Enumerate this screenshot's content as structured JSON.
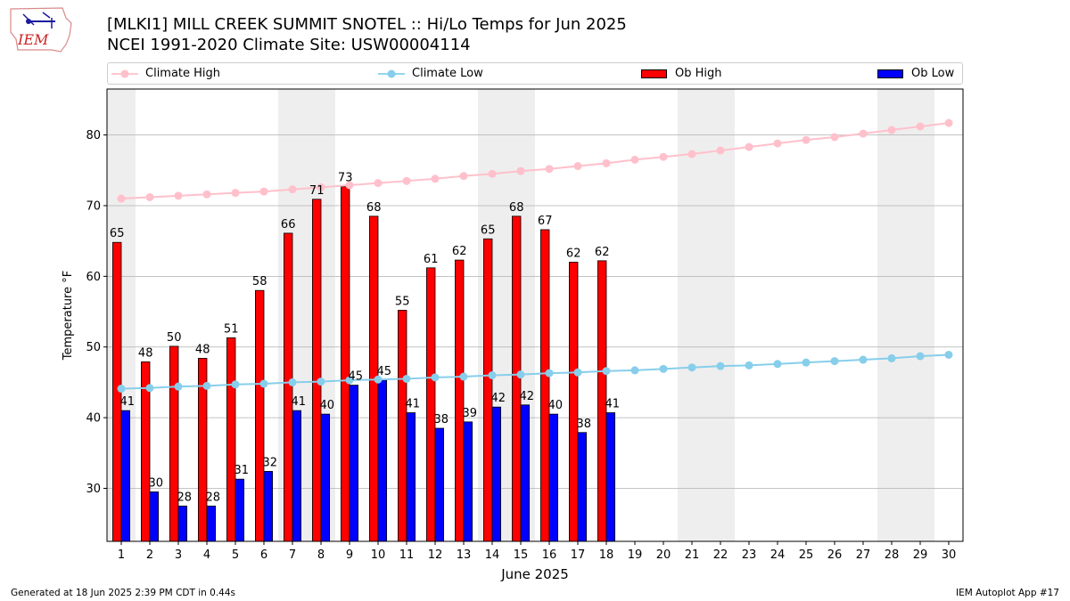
{
  "header": {
    "title_line1": "[MLKI1] MILL CREEK SUMMIT SNOTEL :: Hi/Lo Temps for Jun 2025",
    "title_line2": "NCEI 1991-2020 Climate Site: USW00004114",
    "logo_text": "IEM"
  },
  "legend": {
    "climate_high": "Climate High",
    "climate_low": "Climate Low",
    "ob_high": "Ob High",
    "ob_low": "Ob Low"
  },
  "footer": {
    "left": "Generated at 18 Jun 2025 2:39 PM CDT in 0.44s",
    "right": "IEM Autoplot App #17"
  },
  "colors": {
    "ob_high": "#ff0000",
    "ob_low": "#0000ff",
    "climate_high": "#ffc0cb",
    "climate_low": "#87ceeb",
    "weekend_shade": "#eeeeee",
    "grid": "#b0b0b0"
  },
  "chart_data": {
    "type": "bar",
    "xlabel": "June 2025",
    "ylabel": "Temperature °F",
    "x": [
      1,
      2,
      3,
      4,
      5,
      6,
      7,
      8,
      9,
      10,
      11,
      12,
      13,
      14,
      15,
      16,
      17,
      18,
      19,
      20,
      21,
      22,
      23,
      24,
      25,
      26,
      27,
      28,
      29,
      30
    ],
    "xlim": [
      0.5,
      30.5
    ],
    "ylim": [
      22.5,
      86.5
    ],
    "yticks": [
      30,
      40,
      50,
      60,
      70,
      80
    ],
    "grid": "horizontal",
    "legend_position": "top",
    "shaded_days": [
      1,
      7,
      8,
      14,
      15,
      21,
      22,
      28,
      29
    ],
    "ob_high": [
      64.8,
      47.9,
      50.1,
      48.4,
      51.3,
      58.0,
      66.1,
      70.9,
      72.7,
      68.5,
      55.2,
      61.2,
      62.3,
      65.3,
      68.5,
      66.6,
      62.0,
      62.2
    ],
    "ob_high_labels": [
      "65",
      "48",
      "50",
      "48",
      "51",
      "58",
      "66",
      "71",
      "73",
      "68",
      "55",
      "61",
      "62",
      "65",
      "68",
      "67",
      "62",
      "62"
    ],
    "ob_low": [
      41.0,
      29.5,
      27.5,
      27.5,
      31.3,
      32.4,
      41.0,
      40.5,
      44.6,
      45.3,
      40.7,
      38.5,
      39.4,
      41.5,
      41.8,
      40.5,
      37.9,
      40.7
    ],
    "ob_low_labels": [
      "41",
      "30",
      "28",
      "28",
      "31",
      "32",
      "41",
      "40",
      "45",
      "45",
      "41",
      "38",
      "39",
      "42",
      "42",
      "40",
      "38",
      "41"
    ],
    "climate_high": [
      71.0,
      71.2,
      71.4,
      71.6,
      71.8,
      72.0,
      72.3,
      72.6,
      72.9,
      73.2,
      73.5,
      73.8,
      74.2,
      74.5,
      74.9,
      75.2,
      75.6,
      76.0,
      76.5,
      76.9,
      77.3,
      77.8,
      78.3,
      78.8,
      79.3,
      79.7,
      80.2,
      80.7,
      81.2,
      81.7
    ],
    "climate_low": [
      44.1,
      44.2,
      44.4,
      44.5,
      44.7,
      44.8,
      45.0,
      45.1,
      45.3,
      45.4,
      45.5,
      45.7,
      45.8,
      46.0,
      46.1,
      46.3,
      46.4,
      46.6,
      46.7,
      46.9,
      47.1,
      47.3,
      47.4,
      47.6,
      47.8,
      48.0,
      48.2,
      48.4,
      48.7,
      48.9
    ]
  }
}
